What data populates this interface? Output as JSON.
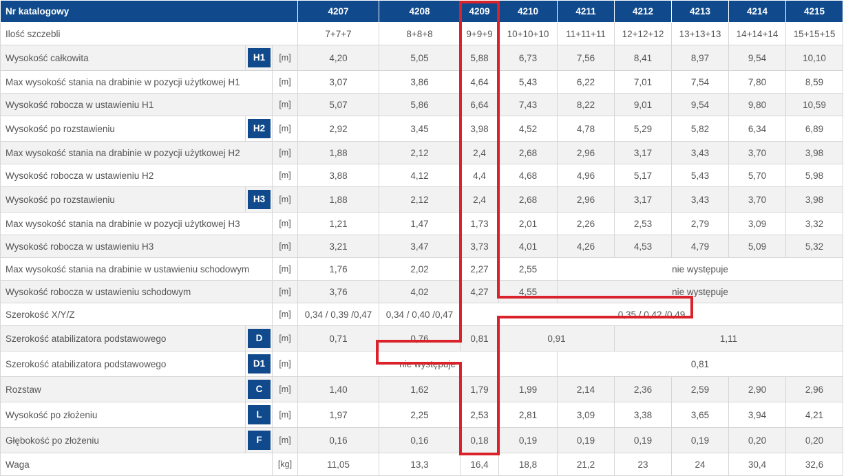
{
  "header": {
    "label": "Nr katalogowy",
    "models": [
      "4207",
      "4208",
      "4209",
      "4210",
      "4211",
      "4212",
      "4213",
      "4214",
      "4215"
    ]
  },
  "rows": {
    "steps": {
      "label": "Ilość szczebli",
      "values": [
        "7+7+7",
        "8+8+8",
        "9+9+9",
        "10+10+10",
        "11+11+11",
        "12+12+12",
        "13+13+13",
        "14+14+14",
        "15+15+15"
      ]
    },
    "total_height": {
      "label": "Wysokość całkowita",
      "badge": "H1",
      "unit": "[m]",
      "values": [
        "4,20",
        "5,05",
        "5,88",
        "6,73",
        "7,56",
        "8,41",
        "8,97",
        "9,54",
        "10,10"
      ]
    },
    "max_stand_h1": {
      "label": "Max wysokość stania na drabinie w pozycji użytkowej H1",
      "unit": "[m]",
      "values": [
        "3,07",
        "3,86",
        "4,64",
        "5,43",
        "6,22",
        "7,01",
        "7,54",
        "7,80",
        "8,59"
      ]
    },
    "work_h1": {
      "label": "Wysokość robocza w ustawieniu H1",
      "unit": "[m]",
      "values": [
        "5,07",
        "5,86",
        "6,64",
        "7,43",
        "8,22",
        "9,01",
        "9,54",
        "9,80",
        "10,59"
      ]
    },
    "spread_h2": {
      "label": "Wysokość po rozstawieniu",
      "badge": "H2",
      "unit": "[m]",
      "values": [
        "2,92",
        "3,45",
        "3,98",
        "4,52",
        "4,78",
        "5,29",
        "5,82",
        "6,34",
        "6,89"
      ]
    },
    "max_stand_h2": {
      "label": "Max wysokość stania na drabinie w pozycji użytkowej H2",
      "unit": "[m]",
      "values": [
        "1,88",
        "2,12",
        "2,4",
        "2,68",
        "2,96",
        "3,17",
        "3,43",
        "3,70",
        "3,98"
      ]
    },
    "work_h2": {
      "label": "Wysokość robocza w ustawieniu H2",
      "unit": "[m]",
      "values": [
        "3,88",
        "4,12",
        "4,4",
        "4,68",
        "4,96",
        "5,17",
        "5,43",
        "5,70",
        "5,98"
      ]
    },
    "spread_h3": {
      "label": "Wysokość po rozstawieniu",
      "badge": "H3",
      "unit": "[m]",
      "values": [
        "1,88",
        "2,12",
        "2,4",
        "2,68",
        "2,96",
        "3,17",
        "3,43",
        "3,70",
        "3,98"
      ]
    },
    "max_stand_h3": {
      "label": "Max wysokość stania na drabinie w pozycji użytkowej H3",
      "unit": "[m]",
      "values": [
        "1,21",
        "1,47",
        "1,73",
        "2,01",
        "2,26",
        "2,53",
        "2,79",
        "3,09",
        "3,32"
      ]
    },
    "work_h3": {
      "label": "Wysokość robocza w ustawieniu H3",
      "unit": "[m]",
      "values": [
        "3,21",
        "3,47",
        "3,73",
        "4,01",
        "4,26",
        "4,53",
        "4,79",
        "5,09",
        "5,32"
      ]
    },
    "max_stand_stairs": {
      "label": "Max wysokość stania na drabinie w ustawieniu schodowym",
      "unit": "[m]",
      "values": [
        "1,76",
        "2,02",
        "2,27",
        "2,55"
      ],
      "rest": "nie występuje"
    },
    "work_stairs": {
      "label": "Wysokość robocza w ustawieniu schodowym",
      "unit": "[m]",
      "values": [
        "3,76",
        "4,02",
        "4,27",
        "4,55"
      ],
      "rest": "nie występuje"
    },
    "width_xyz": {
      "label": "Szerokość X/Y/Z",
      "unit": "[m]",
      "v4207": "0,34 / 0,39 /0,47",
      "v4208": "0,34 / 0,40 /0,47",
      "rest": "0,35 / 0,42 /0,49"
    },
    "stabilizer_d": {
      "label": "Szerokość atabilizatora podstawowego",
      "badge": "D",
      "unit": "[m]",
      "v4207": "0,71",
      "v4208": "0,76",
      "v4209": "0,81",
      "v4210_4211": "0,91",
      "v4212_4215": "1,11"
    },
    "stabilizer_d1": {
      "label": "Szerokość atabilizatora podstawowego",
      "badge": "D1",
      "unit": "[m]",
      "first": "nie występuje",
      "rest": "0,81"
    },
    "spacing": {
      "label": "Rozstaw",
      "badge": "C",
      "unit": "[m]",
      "values": [
        "1,40",
        "1,62",
        "1,79",
        "1,99",
        "2,14",
        "2,36",
        "2,59",
        "2,90",
        "2,96"
      ]
    },
    "folded_height": {
      "label": "Wysokość po złożeniu",
      "badge": "L",
      "unit": "[m]",
      "values": [
        "1,97",
        "2,25",
        "2,53",
        "2,81",
        "3,09",
        "3,38",
        "3,65",
        "3,94",
        "4,21"
      ]
    },
    "folded_depth": {
      "label": "Głębokość po złożeniu",
      "badge": "F",
      "unit": "[m]",
      "values": [
        "0,16",
        "0,16",
        "0,18",
        "0,19",
        "0,19",
        "0,19",
        "0,19",
        "0,20",
        "0,20"
      ]
    },
    "weight": {
      "label": "Waga",
      "unit": "[kg]",
      "values": [
        "11,05",
        "13,3",
        "16,4",
        "18,8",
        "21,2",
        "23",
        "24",
        "30,4",
        "32,6"
      ]
    }
  },
  "colors": {
    "header": "#104a8c",
    "highlight": "#d9222a",
    "alt_row": "#f2f2f2"
  }
}
